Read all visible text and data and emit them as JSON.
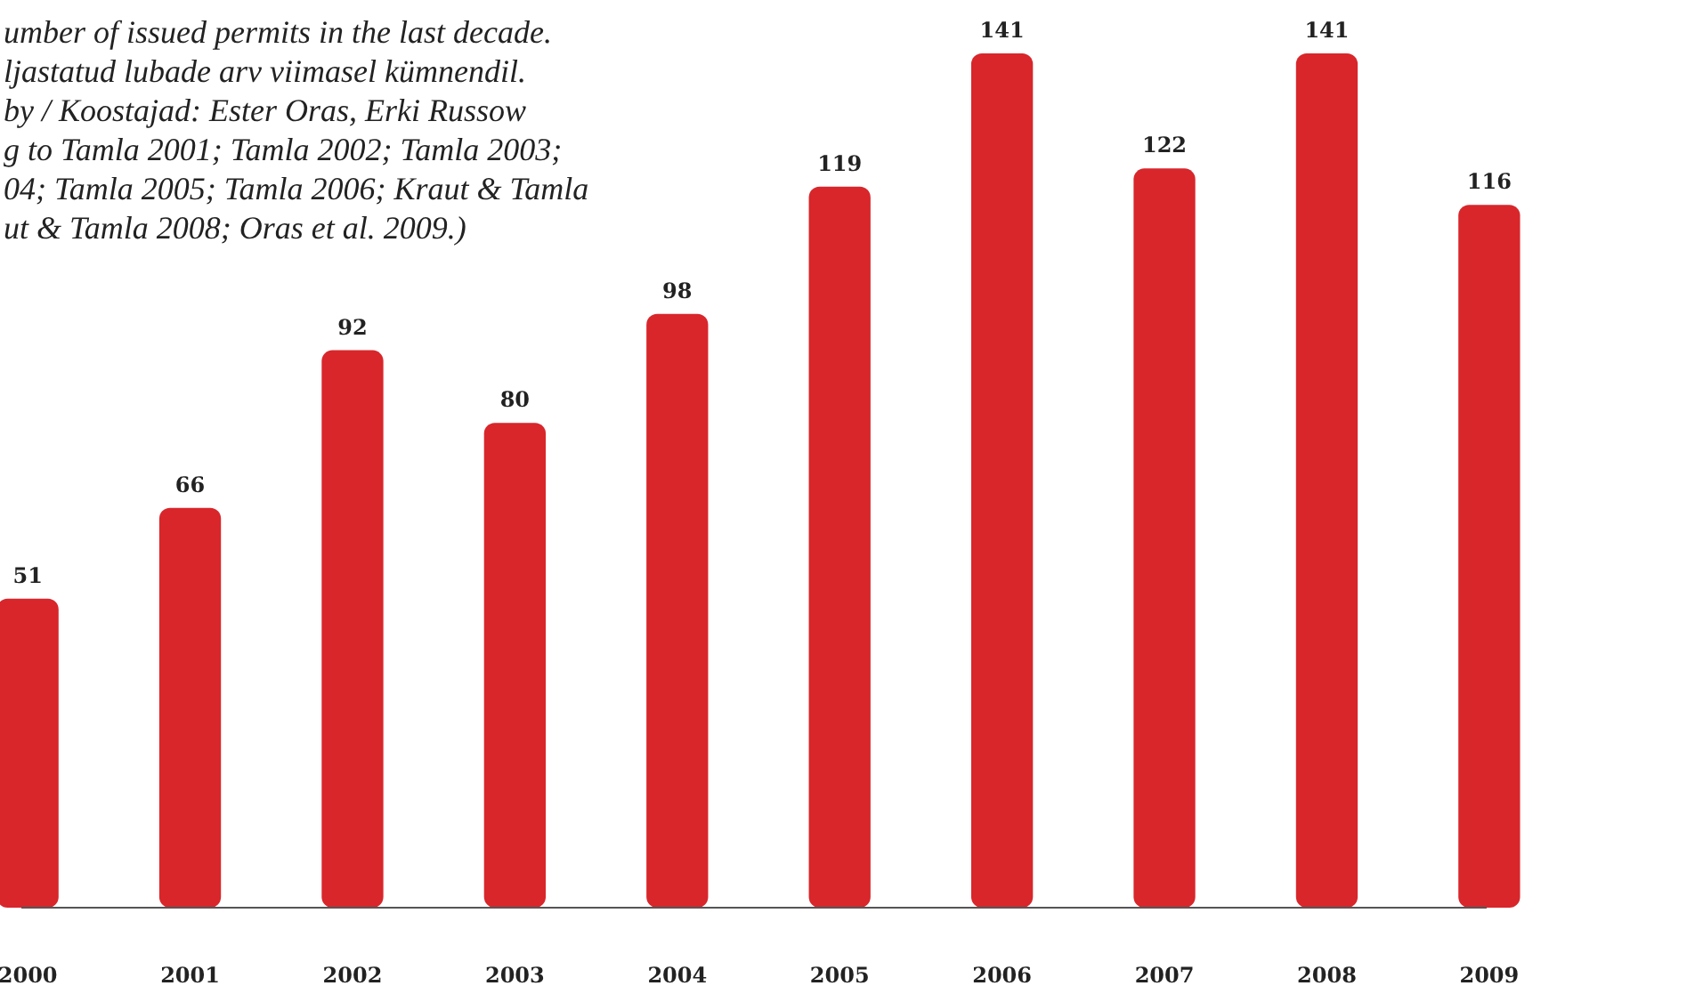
{
  "chart_data": {
    "type": "bar",
    "categories": [
      "2000",
      "2001",
      "2002",
      "2003",
      "2004",
      "2005",
      "2006",
      "2007",
      "2008",
      "2009"
    ],
    "values": [
      51,
      66,
      92,
      80,
      98,
      119,
      141,
      122,
      141,
      116
    ],
    "color": "#d8262b",
    "data_labels": true,
    "annotations": [
      "umber of issued permits in the last decade.",
      "ljastatud lubade arv viimasel kümnendil.",
      "by / Koostajad: Ester Oras, Erki Russow",
      "g to Tamla 2001; Tamla 2002; Tamla 2003;",
      "04; Tamla 2005; Tamla 2006; Kraut & Tamla",
      "ut & Tamla 2008; Oras et al. 2009.)"
    ]
  }
}
